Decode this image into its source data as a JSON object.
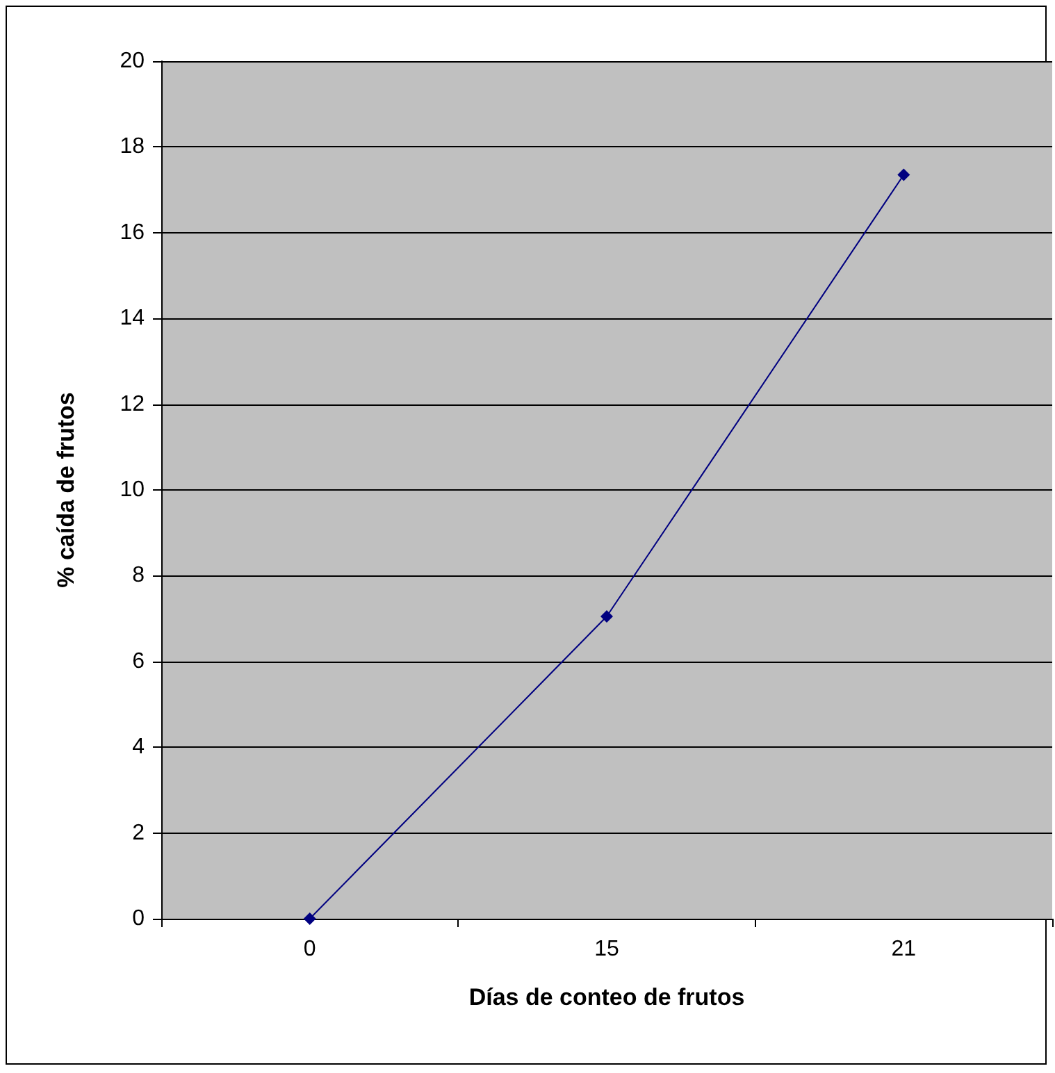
{
  "chart_data": {
    "type": "line",
    "xlabel": "Días de conteo de frutos",
    "ylabel": "% caída de frutos",
    "categories": [
      "0",
      "15",
      "21"
    ],
    "series": [
      {
        "color": "#000080",
        "values": [
          0,
          7.05,
          17.35
        ]
      }
    ],
    "ylim": [
      0,
      20
    ],
    "yticks": [
      0,
      2,
      4,
      6,
      8,
      10,
      12,
      14,
      16,
      18,
      20
    ],
    "grid": "y",
    "marker": "diamond",
    "line_style": "solid"
  }
}
